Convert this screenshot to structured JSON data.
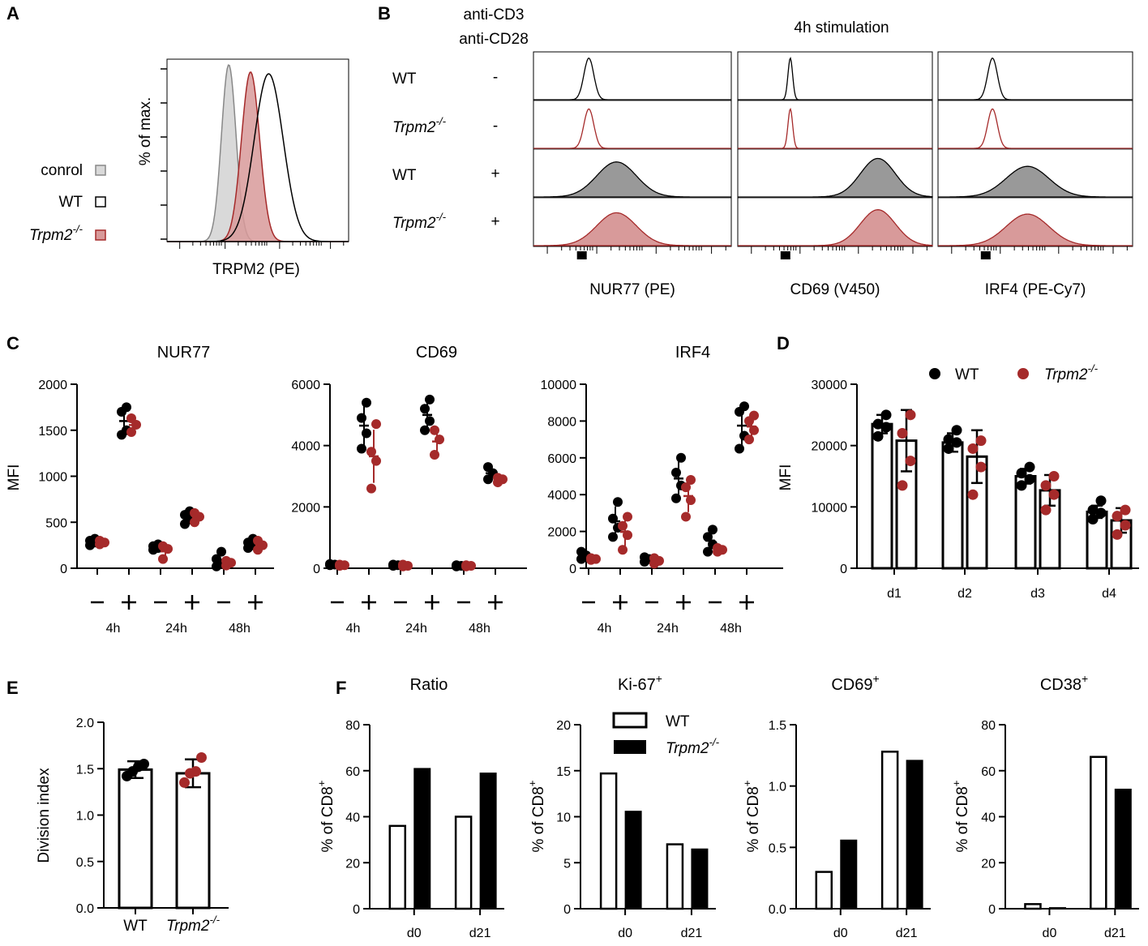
{
  "colors": {
    "wt": "#000000",
    "ko": "#a52a2a",
    "ko_fill": "#d89a9a",
    "control_fill": "#d9d9d9",
    "grey": "#888888"
  },
  "panel_labels": [
    "A",
    "B",
    "C",
    "D",
    "E",
    "F"
  ],
  "chart_data": [
    {
      "id": "A",
      "type": "histogram",
      "xlabel": "TRPM2 (PE)",
      "ylabel": "% of max.",
      "legend": [
        {
          "label": "conrol",
          "swatch": "grey",
          "sup": ""
        },
        {
          "label": "WT",
          "swatch": "open",
          "sup": ""
        },
        {
          "label": "Trpm2",
          "swatch": "red",
          "sup": "-/-"
        }
      ],
      "series": [
        {
          "name": "conrol",
          "peak": 0.34,
          "width": 0.04,
          "height": 0.97
        },
        {
          "name": "Trpm2-/-",
          "peak": 0.46,
          "width": 0.05,
          "height": 0.93
        },
        {
          "name": "WT",
          "peak": 0.56,
          "width": 0.08,
          "height": 0.92
        }
      ]
    },
    {
      "id": "B",
      "type": "histogram-stack",
      "title": "4h stimulation",
      "stim_header": [
        "anti-CD3",
        "anti-CD28"
      ],
      "rows": [
        {
          "label": "WT",
          "sup": "",
          "stim": "-"
        },
        {
          "label": "Trpm2",
          "sup": "-/-",
          "stim": "-"
        },
        {
          "label": "WT",
          "sup": "",
          "stim": "+"
        },
        {
          "label": "Trpm2",
          "sup": "-/-",
          "stim": "+"
        }
      ],
      "panels": [
        {
          "xlabel": "NUR77 (PE)",
          "peaks": [
            [
              0.28,
              0.025,
              0.95
            ],
            [
              0.28,
              0.025,
              0.9
            ],
            [
              0.42,
              0.1,
              0.8
            ],
            [
              0.42,
              0.1,
              0.75
            ]
          ]
        },
        {
          "xlabel": "CD69 (V450)",
          "peaks": [
            [
              0.27,
              0.012,
              0.95
            ],
            [
              0.27,
              0.012,
              0.9
            ],
            [
              0.72,
              0.09,
              0.88
            ],
            [
              0.72,
              0.09,
              0.82
            ]
          ]
        },
        {
          "xlabel": "IRF4 (PE-Cy7)",
          "peaks": [
            [
              0.28,
              0.025,
              0.95
            ],
            [
              0.28,
              0.025,
              0.9
            ],
            [
              0.46,
              0.11,
              0.7
            ],
            [
              0.46,
              0.11,
              0.72
            ]
          ]
        }
      ]
    },
    {
      "id": "C",
      "type": "scatter",
      "ylabel": "MFI",
      "stim_labels": [
        "-",
        "+",
        "-",
        "+",
        "-",
        "+"
      ],
      "time_labels": [
        "4h",
        "24h",
        "48h"
      ],
      "panels": [
        {
          "title": "NUR77",
          "ylim": [
            0,
            2000
          ],
          "yticks": [
            0,
            500,
            1000,
            1500,
            2000
          ],
          "wt": [
            [
              250,
              280,
              300,
              320
            ],
            [
              1450,
              1500,
              1700,
              1750
            ],
            [
              200,
              220,
              240,
              260
            ],
            [
              480,
              530,
              580,
              620
            ],
            [
              20,
              50,
              100,
              180
            ],
            [
              220,
              250,
              280,
              320
            ]
          ],
          "ko": [
            [
              260,
              280,
              300
            ],
            [
              1480,
              1560,
              1630
            ],
            [
              100,
              210,
              240
            ],
            [
              500,
              560,
              600
            ],
            [
              30,
              60,
              80
            ],
            [
              200,
              250,
              300
            ]
          ]
        },
        {
          "title": "CD69",
          "ylim": [
            0,
            6000
          ],
          "yticks": [
            0,
            2000,
            4000,
            6000
          ],
          "wt": [
            [
              100,
              120,
              140
            ],
            [
              3900,
              4400,
              4900,
              5400
            ],
            [
              80,
              100,
              120
            ],
            [
              4500,
              4800,
              5200,
              5500
            ],
            [
              60,
              80,
              100
            ],
            [
              2900,
              3100,
              3300
            ]
          ],
          "ko": [
            [
              80,
              100,
              120
            ],
            [
              2600,
              3500,
              3800,
              4700
            ],
            [
              60,
              80,
              120
            ],
            [
              3700,
              4200,
              4500
            ],
            [
              60,
              80,
              100
            ],
            [
              2800,
              2900,
              2950
            ]
          ]
        },
        {
          "title": "IRF4",
          "ylim": [
            0,
            10000
          ],
          "yticks": [
            0,
            2000,
            4000,
            6000,
            8000,
            10000
          ],
          "wt": [
            [
              500,
              700,
              900
            ],
            [
              1700,
              2200,
              2700,
              3600
            ],
            [
              350,
              500,
              600
            ],
            [
              3800,
              4500,
              5200,
              6000
            ],
            [
              900,
              1300,
              1700,
              2100
            ],
            [
              6500,
              7200,
              8500,
              8800
            ]
          ],
          "ko": [
            [
              450,
              500,
              550
            ],
            [
              1000,
              1800,
              2300,
              2800
            ],
            [
              250,
              400,
              550
            ],
            [
              2800,
              3700,
              4400,
              4800
            ],
            [
              900,
              1000,
              1100
            ],
            [
              7000,
              7500,
              8000,
              8300
            ]
          ]
        }
      ]
    },
    {
      "id": "D",
      "type": "bar",
      "ylabel": "MFI",
      "ylim": [
        0,
        30000
      ],
      "yticks": [
        0,
        10000,
        20000,
        30000
      ],
      "categories": [
        "d1",
        "d2",
        "d3",
        "d4"
      ],
      "legend": [
        {
          "label": "WT",
          "sup": ""
        },
        {
          "label": "Trpm2",
          "sup": "-/-"
        }
      ],
      "series": [
        {
          "name": "WT",
          "values": [
            23500,
            20500,
            15000,
            9200
          ],
          "err": [
            1500,
            1500,
            1200,
            1000
          ],
          "points": [
            [
              21500,
              23000,
              23500,
              25000
            ],
            [
              19500,
              20500,
              21000,
              22500
            ],
            [
              13500,
              14500,
              15500,
              16500
            ],
            [
              8000,
              9000,
              9500,
              11000
            ]
          ]
        },
        {
          "name": "Trpm2-/-",
          "values": [
            20800,
            18200,
            12700,
            7800
          ],
          "err": [
            5000,
            4300,
            2500,
            2000
          ],
          "points": [
            [
              13500,
              17500,
              22000,
              25000
            ],
            [
              12000,
              16500,
              19500,
              20800
            ],
            [
              9500,
              12000,
              13500,
              15000
            ],
            [
              5500,
              7000,
              8500,
              9500
            ]
          ]
        }
      ]
    },
    {
      "id": "E",
      "type": "bar",
      "ylabel": "Division index",
      "ylim": [
        0,
        2.0
      ],
      "yticks": [
        "0.0",
        "0.5",
        "1.0",
        "1.5",
        "2.0"
      ],
      "categories": [
        "WT",
        "Trpm2"
      ],
      "category_sups": [
        "",
        "-/-"
      ],
      "values": [
        1.49,
        1.45
      ],
      "err": [
        0.09,
        0.15
      ],
      "points": [
        [
          1.42,
          1.47,
          1.52,
          1.55
        ],
        [
          1.35,
          1.45,
          1.47,
          1.62
        ]
      ]
    },
    {
      "id": "F",
      "type": "bar",
      "ylabel": "% of CD8",
      "ylabel_sup": "+",
      "legend": [
        {
          "label": "WT",
          "sup": ""
        },
        {
          "label": "Trpm2",
          "sup": "-/-"
        }
      ],
      "categories": [
        "d0",
        "d21"
      ],
      "panels": [
        {
          "title": "Ratio",
          "title_sup": "",
          "ylim": [
            0,
            80
          ],
          "yticks": [
            "0",
            "20",
            "40",
            "60",
            "80"
          ],
          "wt": [
            36,
            40
          ],
          "ko": [
            61,
            59
          ]
        },
        {
          "title": "Ki-67",
          "title_sup": "+",
          "ylim": [
            0,
            20
          ],
          "yticks": [
            "0",
            "5",
            "10",
            "15",
            "20"
          ],
          "wt": [
            14.7,
            7.0
          ],
          "ko": [
            10.6,
            6.5
          ]
        },
        {
          "title": "CD69",
          "title_sup": "+",
          "ylim": [
            0,
            1.5
          ],
          "yticks": [
            "0.0",
            "0.5",
            "1.0",
            "1.5"
          ],
          "wt": [
            0.3,
            1.28
          ],
          "ko": [
            0.56,
            1.21
          ]
        },
        {
          "title": "CD38",
          "title_sup": "+",
          "ylim": [
            0,
            80
          ],
          "yticks": [
            "0",
            "20",
            "40",
            "60",
            "80"
          ],
          "wt": [
            2,
            66
          ],
          "ko": [
            0.5,
            52
          ]
        }
      ]
    }
  ]
}
